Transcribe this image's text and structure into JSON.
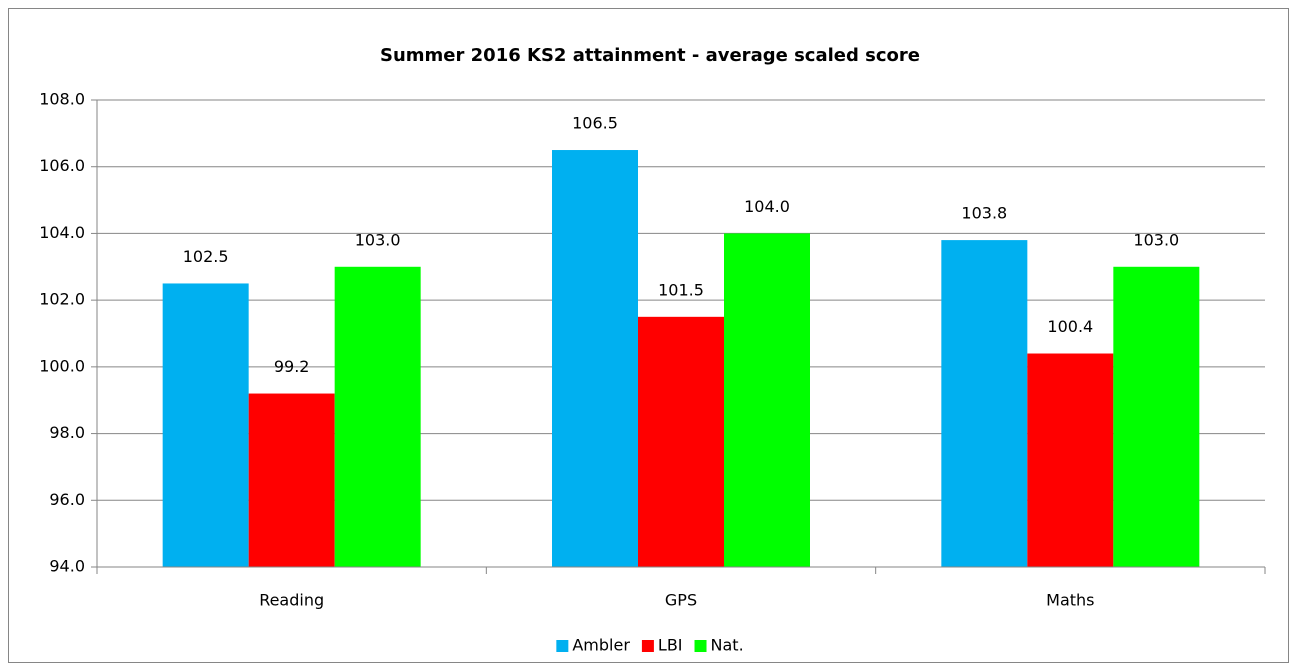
{
  "chart_data": {
    "type": "bar",
    "title": "Summer 2016 KS2 attainment - average scaled score",
    "categories": [
      "Reading",
      "GPS",
      "Maths"
    ],
    "series": [
      {
        "name": "Ambler",
        "color": "#00b0f0",
        "values": [
          102.5,
          106.5,
          103.8
        ],
        "value_labels": [
          "102.5",
          "106.5",
          "103.8"
        ]
      },
      {
        "name": "LBI",
        "color": "#ff0000",
        "values": [
          99.2,
          101.5,
          100.4
        ],
        "value_labels": [
          "99.2",
          "101.5",
          "100.4"
        ]
      },
      {
        "name": "Nat.",
        "color": "#00ff00",
        "values": [
          103,
          104,
          103
        ],
        "value_labels": [
          "103.0",
          "104.0",
          "103.0"
        ]
      }
    ],
    "ylim": [
      94,
      108
    ],
    "yticks": [
      {
        "value": 94,
        "label": "94.0"
      },
      {
        "value": 96,
        "label": "96.0"
      },
      {
        "value": 98,
        "label": "98.0"
      },
      {
        "value": 100,
        "label": "100.0"
      },
      {
        "value": 102,
        "label": "102.0"
      },
      {
        "value": 104,
        "label": "104.0"
      },
      {
        "value": 106,
        "label": "106.0"
      },
      {
        "value": 108,
        "label": "108.0"
      }
    ],
    "grid": true,
    "legend": "bottom"
  }
}
